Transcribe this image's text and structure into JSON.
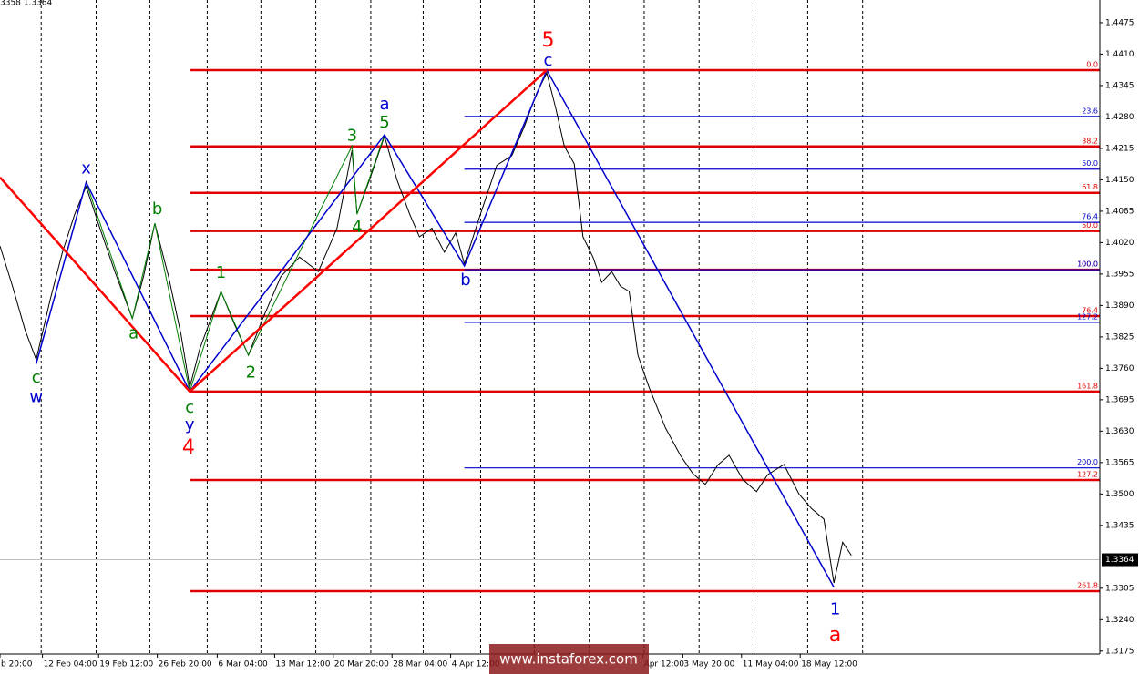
{
  "chart_data": {
    "type": "line",
    "corner_text": "3358 1.3364",
    "watermark": "www.instaforex.com",
    "xlim": [
      0,
      881
    ],
    "ylim": [
      1.3169,
      1.4522
    ],
    "xgrid": [
      33,
      77,
      120,
      166,
      209,
      253,
      297,
      339,
      385,
      428,
      472,
      516,
      560,
      604,
      647,
      691
    ],
    "x_labels": [
      {
        "value": 0,
        "label": "b 20:00"
      },
      {
        "value": 34,
        "label": "12 Feb 04:00"
      },
      {
        "value": 79,
        "label": "19 Feb 12:00"
      },
      {
        "value": 126,
        "label": "26 Feb 20:00"
      },
      {
        "value": 174,
        "label": "6 Mar 04:00"
      },
      {
        "value": 220,
        "label": "13 Mar 12:00"
      },
      {
        "value": 267,
        "label": "20 Mar 20:00"
      },
      {
        "value": 314,
        "label": "28 Mar 04:00"
      },
      {
        "value": 361,
        "label": "4 Apr 12:00"
      },
      {
        "value": 515,
        "label": "Apr 12:00"
      },
      {
        "value": 547,
        "label": "3 May 20:00"
      },
      {
        "value": 594,
        "label": "11 May 04:00"
      },
      {
        "value": 641,
        "label": "18 May 12:00"
      }
    ],
    "yticks": [
      1.4475,
      {
        "value": 1.441,
        "label": "1.4410"
      },
      1.4345,
      {
        "value": 1.428,
        "label": "1.4280"
      },
      1.4215,
      {
        "value": 1.415,
        "label": "1.4150"
      },
      1.4085,
      {
        "value": 1.402,
        "label": "1.4020"
      },
      1.3955,
      {
        "value": 1.389,
        "label": "1.3890"
      },
      1.3825,
      {
        "value": 1.376,
        "label": "1.3760"
      },
      1.3695,
      {
        "value": 1.363,
        "label": "1.3630"
      },
      1.3565,
      {
        "value": 1.35,
        "label": "1.3500"
      },
      1.3435,
      1.3305,
      {
        "value": 1.324,
        "label": "1.3240"
      },
      1.3175
    ],
    "current_price": 1.3364,
    "series": [
      {
        "color": "#000000",
        "width": 1,
        "x": [
          0,
          10,
          20,
          29,
          40,
          50,
          60,
          69,
          80,
          92,
          106,
          115,
          124,
          135,
          145,
          152,
          160,
          170,
          177,
          188,
          199,
          210,
          225,
          240,
          255,
          270,
          282,
          286,
          296,
          308,
          318,
          328,
          336,
          346,
          356,
          365,
          372,
          385,
          398,
          410,
          420,
          430,
          438,
          445,
          452,
          460,
          467,
          475,
          482,
          490,
          497,
          504,
          511,
          520,
          533,
          545,
          555,
          565,
          575,
          584,
          595,
          606,
          615,
          628,
          640,
          650,
          660,
          668,
          675,
          682
        ],
        "values": [
          1.4013,
          1.393,
          1.384,
          1.3778,
          1.39,
          1.4,
          1.408,
          1.4136,
          1.405,
          1.396,
          1.3863,
          1.395,
          1.406,
          1.395,
          1.383,
          1.3721,
          1.38,
          1.387,
          1.3919,
          1.385,
          1.3787,
          1.386,
          1.395,
          1.399,
          1.396,
          1.405,
          1.4211,
          1.4079,
          1.415,
          1.424,
          1.415,
          1.408,
          1.4032,
          1.405,
          1.4,
          1.404,
          1.3976,
          1.408,
          1.418,
          1.42,
          1.426,
          1.433,
          1.4371,
          1.43,
          1.422,
          1.4183,
          1.4032,
          1.399,
          1.3938,
          1.396,
          1.393,
          1.3919,
          1.3787,
          1.372,
          1.3637,
          1.358,
          1.3542,
          1.352,
          1.356,
          1.358,
          1.353,
          1.3505,
          1.354,
          1.3561,
          1.35,
          1.347,
          1.3448,
          1.3316,
          1.34,
          1.3373
        ]
      },
      {
        "color": "#008000",
        "width": 1,
        "x": [
          69,
          106,
          124,
          152,
          177,
          199,
          282,
          286,
          308
        ],
        "values": [
          1.4145,
          1.3863,
          1.406,
          1.3712,
          1.3919,
          1.3787,
          1.422,
          1.4079,
          1.4243
        ]
      },
      {
        "color": "#0000cc",
        "width": 1.5,
        "x": [
          29,
          69,
          152,
          308,
          372,
          438,
          668
        ],
        "values": [
          1.3769,
          1.4145,
          1.3712,
          1.4243,
          1.3972,
          1.4377,
          1.3307
        ]
      },
      {
        "color": "#ff0000",
        "width": 2.5,
        "x": [
          0,
          152,
          438
        ],
        "values": [
          1.4155,
          1.3712,
          1.4377
        ]
      }
    ],
    "fib_levels": [
      {
        "color": "#e00000",
        "start": 152,
        "value": 1.4377,
        "label": "0.0"
      },
      {
        "color": "#e00000",
        "start": 152,
        "value": 1.4219,
        "label": "38.2"
      },
      {
        "color": "#e00000",
        "start": 152,
        "value": 1.4123,
        "label": "61.8"
      },
      {
        "color": "#e00000",
        "start": 152,
        "value": 1.4044,
        "label": "50.0"
      },
      {
        "color": "#e00000",
        "start": 152,
        "value": 1.3964,
        "label": "100.0"
      },
      {
        "color": "#e00000",
        "start": 152,
        "value": 1.3868,
        "label": "76.4"
      },
      {
        "color": "#e00000",
        "start": 152,
        "value": 1.3712,
        "label": "161.8"
      },
      {
        "color": "#e00000",
        "start": 152,
        "value": 1.3529,
        "label": "127.2"
      },
      {
        "color": "#e00000",
        "start": 152,
        "value": 1.3299,
        "label": "261.8"
      },
      {
        "color": "#0000cc",
        "start": 372,
        "value": 1.4281,
        "label": "23.6"
      },
      {
        "color": "#0000cc",
        "start": 372,
        "value": 1.4172,
        "label": "50.0"
      },
      {
        "color": "#0000cc",
        "start": 372,
        "value": 1.4062,
        "label": "76.4"
      },
      {
        "color": "#0000cc",
        "start": 372,
        "value": 1.3964,
        "label": "100.0"
      },
      {
        "color": "#0000cc",
        "start": 372,
        "value": 1.3855,
        "label": "127.2"
      },
      {
        "color": "#0000cc",
        "start": 372,
        "value": 1.3554,
        "label": "200.0"
      }
    ],
    "annotations": [
      {
        "text": "c",
        "color": "#008000",
        "size": 18,
        "x": 29,
        "y": 1.374
      },
      {
        "text": "w",
        "color": "#0000cc",
        "size": 18,
        "x": 29,
        "y": 1.3699
      },
      {
        "text": "x",
        "color": "#0000cc",
        "size": 18,
        "x": 69,
        "y": 1.4172
      },
      {
        "text": "a",
        "color": "#008000",
        "size": 18,
        "x": 107,
        "y": 1.3831
      },
      {
        "text": "b",
        "color": "#008000",
        "size": 18,
        "x": 126,
        "y": 1.4089
      },
      {
        "text": "c",
        "color": "#008000",
        "size": 18,
        "x": 152,
        "y": 1.3678
      },
      {
        "text": "y",
        "color": "#0000cc",
        "size": 18,
        "x": 152,
        "y": 1.3642
      },
      {
        "text": "4",
        "color": "#ff0000",
        "size": 22,
        "x": 151,
        "y": 1.3595
      },
      {
        "text": "1",
        "color": "#008000",
        "size": 18,
        "x": 177,
        "y": 1.3957
      },
      {
        "text": "2",
        "color": "#008000",
        "size": 18,
        "x": 201,
        "y": 1.375
      },
      {
        "text": "3",
        "color": "#008000",
        "size": 18,
        "x": 282,
        "y": 1.424
      },
      {
        "text": "4",
        "color": "#008000",
        "size": 18,
        "x": 286,
        "y": 1.4051
      },
      {
        "text": "5",
        "color": "#008000",
        "size": 18,
        "x": 308,
        "y": 1.4268
      },
      {
        "text": "a",
        "color": "#0000cc",
        "size": 18,
        "x": 308,
        "y": 1.4305
      },
      {
        "text": "b",
        "color": "#0000cc",
        "size": 18,
        "x": 373,
        "y": 1.3942
      },
      {
        "text": "c",
        "color": "#0000cc",
        "size": 18,
        "x": 439,
        "y": 1.4396
      },
      {
        "text": "5",
        "color": "#ff0000",
        "size": 22,
        "x": 439,
        "y": 1.4437
      },
      {
        "text": "1",
        "color": "#0000cc",
        "size": 18,
        "x": 669,
        "y": 1.326
      },
      {
        "text": "a",
        "color": "#ff0000",
        "size": 22,
        "x": 669,
        "y": 1.3207
      }
    ]
  }
}
